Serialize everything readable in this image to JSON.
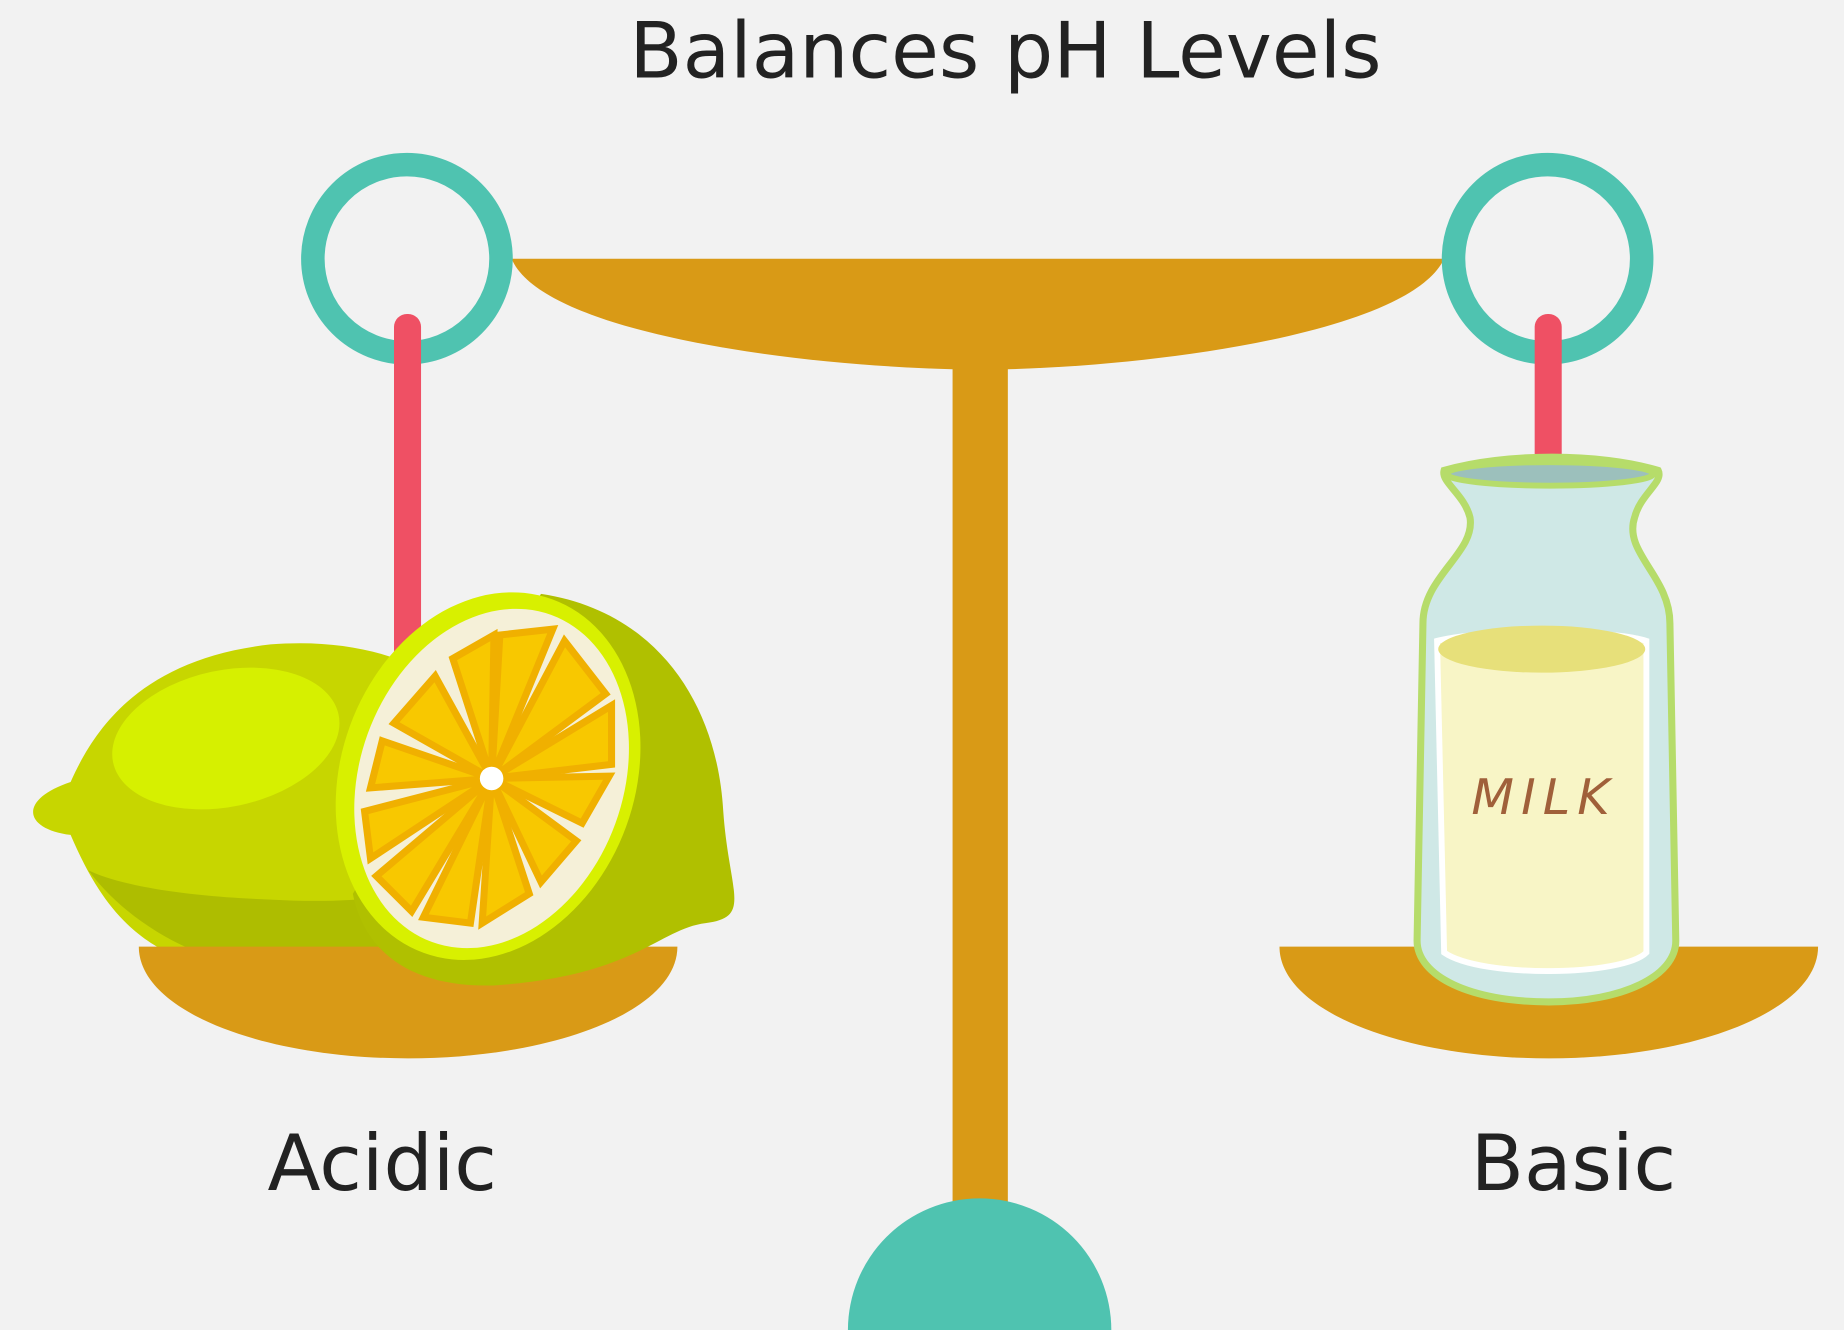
{
  "title": "Balances pH Levels",
  "left_label": "Acidic",
  "right_label": "Basic",
  "jar_label": "MILK"
}
